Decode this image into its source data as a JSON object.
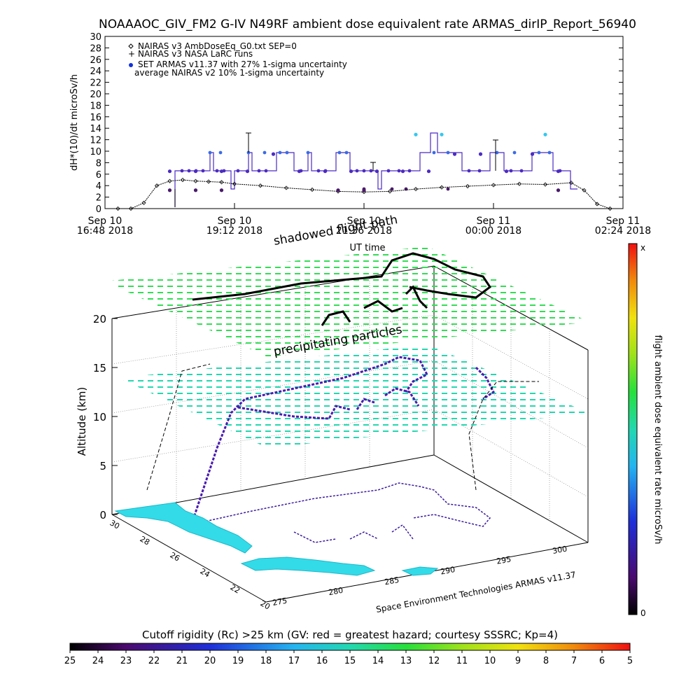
{
  "chart_data": [
    {
      "type": "scatter",
      "title": "NOAAAOC_GIV_FM2 G-IV    N49RF  ambient dose equivalent rate ARMAS_dirIP_Report_56940",
      "ylabel": "dH*(10)/dt microSv/h",
      "xlabel": "UT time",
      "ylim": [
        0,
        30
      ],
      "yticks": [
        "0",
        "2",
        "4",
        "6",
        "8",
        "10",
        "12",
        "14",
        "16",
        "18",
        "20",
        "22",
        "24",
        "26",
        "28",
        "30"
      ],
      "xticks": [
        {
          "l1": "Sep 10",
          "l2": "16:48 2018",
          "v": 0
        },
        {
          "l1": "Sep 10",
          "l2": "19:12 2018",
          "v": 1
        },
        {
          "l1": "Sep 10",
          "l2": "21:36 2018",
          "v": 2
        },
        {
          "l1": "Sep 11",
          "l2": "00:00 2018",
          "v": 3
        },
        {
          "l1": "Sep 11",
          "l2": "02:24 2018",
          "v": 4
        }
      ],
      "legend": [
        "NAIRAS v3 AmbDoseEq_G0.txt SEP=0",
        "NAIRAS v3 NASA LaRC runs",
        "SET ARMAS v11.37 with 27% 1-sigma uncertainty",
        "average NAIRAS v2 10% 1-sigma uncertainty"
      ],
      "legend_position": "top-left",
      "series": [
        {
          "marker": "diamond",
          "x": [
            0.1,
            0.2,
            0.3,
            0.4,
            0.5,
            0.6,
            0.7,
            0.8,
            0.9,
            1.0,
            1.2,
            1.4,
            1.6,
            1.8,
            2.0,
            2.2,
            2.4,
            2.6,
            2.8,
            3.0,
            3.2,
            3.4,
            3.6,
            3.7,
            3.8,
            3.9
          ],
          "values": [
            0,
            0,
            1,
            4,
            4.8,
            5,
            4.8,
            4.7,
            4.6,
            4.3,
            4,
            3.6,
            3.3,
            3,
            2.9,
            3,
            3.4,
            3.7,
            3.9,
            4.1,
            4.3,
            4.2,
            4.5,
            3.2,
            0.8,
            0
          ]
        },
        {
          "marker": "dots",
          "color": "#4b2bc4",
          "x": [
            0.5,
            0.7,
            0.9,
            1.1,
            1.3,
            1.5,
            1.7,
            1.9,
            2.1,
            2.3,
            2.5,
            2.7,
            2.9,
            3.1,
            3.3,
            3.5
          ],
          "values": [
            6.5,
            6.5,
            6.5,
            6.5,
            9.5,
            6.5,
            6.5,
            6.5,
            6.5,
            6.5,
            6.5,
            9.5,
            9.5,
            6.5,
            9.5,
            6.5
          ]
        },
        {
          "marker": "dots",
          "color": "#33c8f0",
          "x": [
            2.4,
            2.6,
            3.4
          ],
          "values": [
            12.9,
            12.9,
            12.9
          ]
        },
        {
          "marker": "dots",
          "color": "#4a1a6a",
          "x": [
            0.5,
            0.7,
            0.9,
            1.8,
            2.0,
            3.5
          ],
          "values": [
            3.2,
            3.2,
            3.2,
            3.2,
            3.2,
            3.2
          ]
        }
      ]
    },
    {
      "type": "3d-trajectory",
      "zlabel": "Altitude (km)",
      "zticks": [
        "0",
        "5",
        "10",
        "15",
        "20"
      ],
      "ylat_ticks": [
        "30",
        "28",
        "26",
        "24",
        "22",
        "20"
      ],
      "xlon_ticks": [
        "275",
        "280",
        "285",
        "290",
        "295",
        "300"
      ],
      "annotations": [
        "shadowed flight path",
        "precipitating particles"
      ],
      "credit": "Space Environment Technologies ARMAS v11.37",
      "colorbar": {
        "label": "flight ambient dose equivalent rate microSv/h",
        "top": "x",
        "bottom": "0"
      }
    }
  ],
  "cutoff_bar": {
    "title": "Cutoff rigidity (Rc) >25 km (GV: red = greatest hazard; courtesy SSSRC; Kp=4)",
    "ticks": [
      "25",
      "24",
      "23",
      "22",
      "21",
      "20",
      "19",
      "18",
      "17",
      "16",
      "15",
      "14",
      "13",
      "12",
      "11",
      "10",
      "9",
      "8",
      "7",
      "6",
      "5"
    ]
  }
}
